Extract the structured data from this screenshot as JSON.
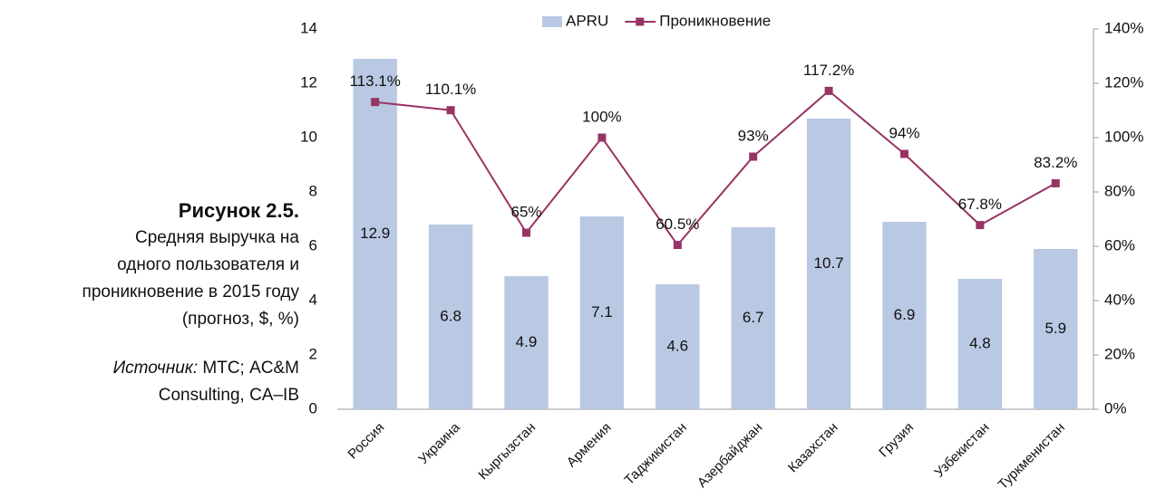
{
  "caption": {
    "figure": "Рисунок 2.5.",
    "description_lines": [
      "Средняя выручка на",
      "одного пользователя и",
      "проникновение в 2015 году",
      "(прогноз, $, %)"
    ],
    "source_label": "Источник:",
    "source_lines": [
      "МТС; AC&M",
      "Consulting, CA–IB"
    ]
  },
  "chart_data": {
    "type": "bar",
    "categories": [
      "Россия",
      "Украина",
      "Кыргызстан",
      "Армения",
      "Таджикистан",
      "Азербайджан",
      "Казахстан",
      "Грузия",
      "Узбекистан",
      "Туркменистан"
    ],
    "series": [
      {
        "name": "APRU",
        "type": "bar",
        "color": "#b9c8e3",
        "values": [
          12.9,
          6.8,
          4.9,
          7.1,
          4.6,
          6.7,
          10.7,
          6.9,
          4.8,
          5.9
        ]
      },
      {
        "name": "Проникновение",
        "type": "line",
        "axis": "y2",
        "color": "#983465",
        "values": [
          113.1,
          110.1,
          65,
          100,
          60.5,
          93,
          117.2,
          94,
          67.8,
          83.2
        ],
        "value_labels": [
          "113.1%",
          "110.1%",
          "65%",
          "100%",
          "60.5%",
          "93%",
          "117.2%",
          "94%",
          "67.8%",
          "83.2%"
        ]
      }
    ],
    "ylim": [
      0,
      14
    ],
    "yticks": [
      0,
      2,
      4,
      6,
      8,
      10,
      12,
      14
    ],
    "y2lim": [
      0,
      140
    ],
    "y2ticks": [
      {
        "value": 0,
        "label": "0%"
      },
      {
        "value": 20,
        "label": "20%"
      },
      {
        "value": 40,
        "label": "40%"
      },
      {
        "value": 60,
        "label": "60%"
      },
      {
        "value": 80,
        "label": "80%"
      },
      {
        "value": 100,
        "label": "100%"
      },
      {
        "value": 120,
        "label": "120%"
      },
      {
        "value": 140,
        "label": "140%"
      }
    ],
    "legend": "top",
    "grid": false
  }
}
